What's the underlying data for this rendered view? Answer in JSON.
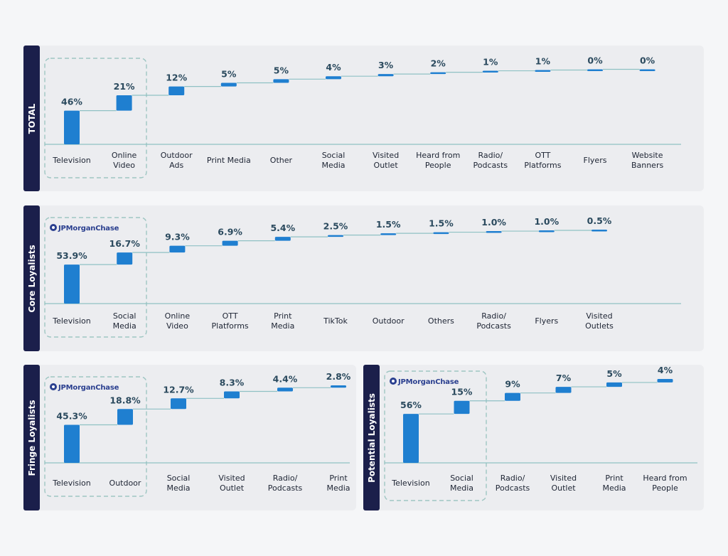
{
  "charts": [
    {
      "label": "TOTAL"
    },
    {
      "label": "Core Loyalists"
    },
    {
      "label": "Fringe Loyalists"
    },
    {
      "label": "Potential Loyalists"
    }
  ],
  "brand_logo_text": "JPMorganChase",
  "colors": {
    "panel_label_bg": "#1b1f4b",
    "panel_bg": "#ecedf0",
    "bar": "#1f7fd0",
    "connector": "#8fc1c4",
    "highlight_box": "#9ec6c2"
  },
  "chart_data": [
    {
      "type": "bar",
      "title": "TOTAL",
      "categories": [
        "Television",
        "Online Video",
        "Outdoor Ads",
        "Print Media",
        "Other",
        "Social Media",
        "Visited Outlet",
        "Heard from People",
        "Radio/ Podcasts",
        "OTT Platforms",
        "Flyers",
        "Website Banners"
      ],
      "values": [
        46,
        21,
        12,
        5,
        5,
        4,
        3,
        2,
        1,
        1,
        0,
        0
      ],
      "labels": [
        "46%",
        "21%",
        "12%",
        "5%",
        "5%",
        "4%",
        "3%",
        "2%",
        "1%",
        "1%",
        "0%",
        "0%"
      ],
      "unit": "%",
      "highlighted_categories": [
        "Television",
        "Online Video"
      ],
      "logo": false
    },
    {
      "type": "bar",
      "title": "Core Loyalists",
      "categories": [
        "Television",
        "Social Media",
        "Online Video",
        "OTT Platforms",
        "Print Media",
        "TikTok",
        "Outdoor",
        "Others",
        "Radio/ Podcasts",
        "Flyers",
        "Visited Outlets"
      ],
      "values": [
        53.9,
        16.7,
        9.3,
        6.9,
        5.4,
        2.5,
        1.5,
        1.5,
        1.0,
        1.0,
        0.5
      ],
      "labels": [
        "53.9%",
        "16.7%",
        "9.3%",
        "6.9%",
        "5.4%",
        "2.5%",
        "1.5%",
        "1.5%",
        "1.0%",
        "1.0%",
        "0.5%"
      ],
      "unit": "%",
      "highlighted_categories": [
        "Television",
        "Social Media"
      ],
      "logo": true
    },
    {
      "type": "bar",
      "title": "Fringe Loyalists",
      "categories": [
        "Television",
        "Outdoor",
        "Social Media",
        "Visited Outlet",
        "Radio/ Podcasts",
        "Print Media"
      ],
      "values": [
        45.3,
        18.8,
        12.7,
        8.3,
        4.4,
        2.8
      ],
      "labels": [
        "45.3%",
        "18.8%",
        "12.7%",
        "8.3%",
        "4.4%",
        "2.8%"
      ],
      "unit": "%",
      "highlighted_categories": [
        "Television",
        "Outdoor"
      ],
      "logo": true
    },
    {
      "type": "bar",
      "title": "Potential Loyalists",
      "categories": [
        "Television",
        "Social Media",
        "Radio/ Podcasts",
        "Visited Outlet",
        "Print Media",
        "Heard from People"
      ],
      "values": [
        56,
        15,
        9,
        7,
        5,
        4
      ],
      "labels": [
        "56%",
        "15%",
        "9%",
        "7%",
        "5%",
        "4%"
      ],
      "unit": "%",
      "highlighted_categories": [
        "Television",
        "Social Media"
      ],
      "logo": true
    }
  ]
}
